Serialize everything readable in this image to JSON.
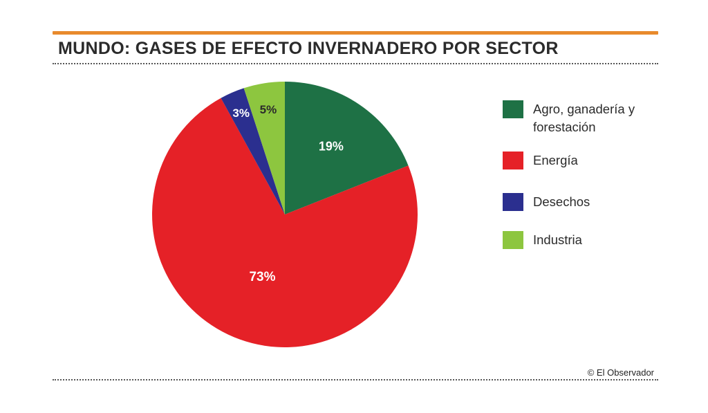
{
  "title": "MUNDO: GASES DE EFECTO INVERNADERO POR SECTOR",
  "credit": "© El Observador",
  "colors": {
    "accent": "#e88a2c",
    "agro": "#1e7145",
    "energia": "#e52127",
    "desechos": "#2b2f8f",
    "industria": "#8dc63f"
  },
  "chart_data": {
    "type": "pie",
    "title": "MUNDO: GASES DE EFECTO INVERNADERO POR SECTOR",
    "slices": [
      {
        "label": "Agro, ganadería y forestación",
        "value": 19,
        "display": "19%",
        "color": "#1e7145"
      },
      {
        "label": "Energía",
        "value": 73,
        "display": "73%",
        "color": "#e52127"
      },
      {
        "label": "Desechos",
        "value": 3,
        "display": "3%",
        "color": "#2b2f8f"
      },
      {
        "label": "Industria",
        "value": 5,
        "display": "5%",
        "color": "#8dc63f"
      }
    ],
    "start": "top",
    "direction": "clockwise",
    "legend_position": "right"
  },
  "legend": [
    {
      "label": "Agro, ganadería y forestación",
      "color": "#1e7145"
    },
    {
      "label": "Energía",
      "color": "#e52127"
    },
    {
      "label": "Desechos",
      "color": "#2b2f8f"
    },
    {
      "label": "Industria",
      "color": "#8dc63f"
    }
  ]
}
